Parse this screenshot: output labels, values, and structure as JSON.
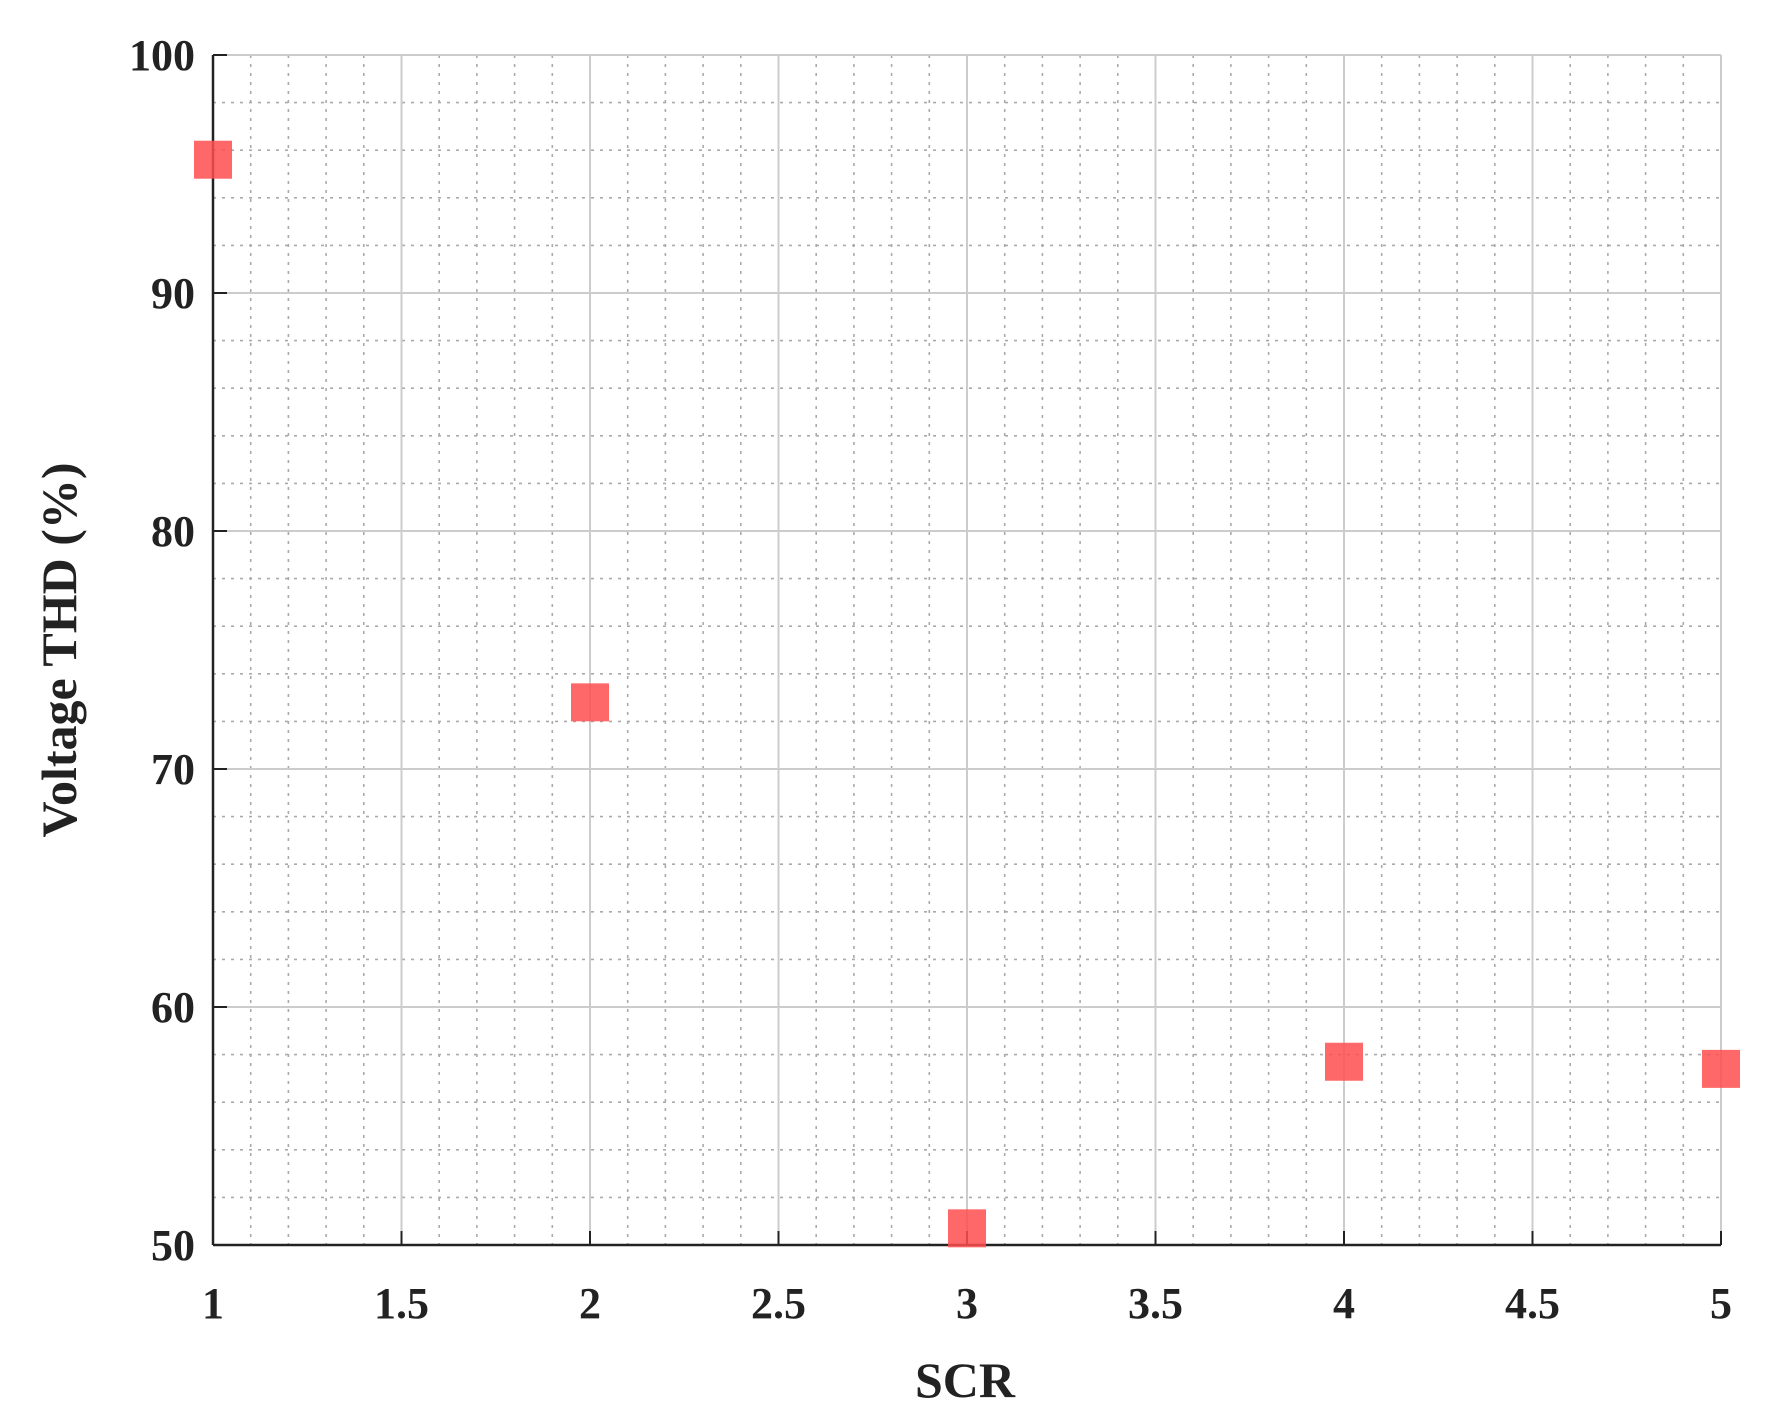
{
  "chart_data": {
    "type": "scatter",
    "x_label": "SCR",
    "y_label": "Voltage THD (%)",
    "series": [
      {
        "color": "#ff4d4d",
        "marker": "square",
        "x": [
          1,
          2,
          3,
          4,
          5
        ],
        "values": [
          95.6,
          72.8,
          50.7,
          57.7,
          57.4
        ]
      }
    ],
    "xlim": [
      1,
      5
    ],
    "xticks": [
      1,
      1.5,
      2,
      2.5,
      3,
      3.5,
      4,
      4.5,
      5
    ],
    "ylim": [
      50,
      100
    ],
    "yticks": [
      50,
      60,
      70,
      80,
      90,
      100
    ],
    "grid": true,
    "minor_grid": true
  }
}
